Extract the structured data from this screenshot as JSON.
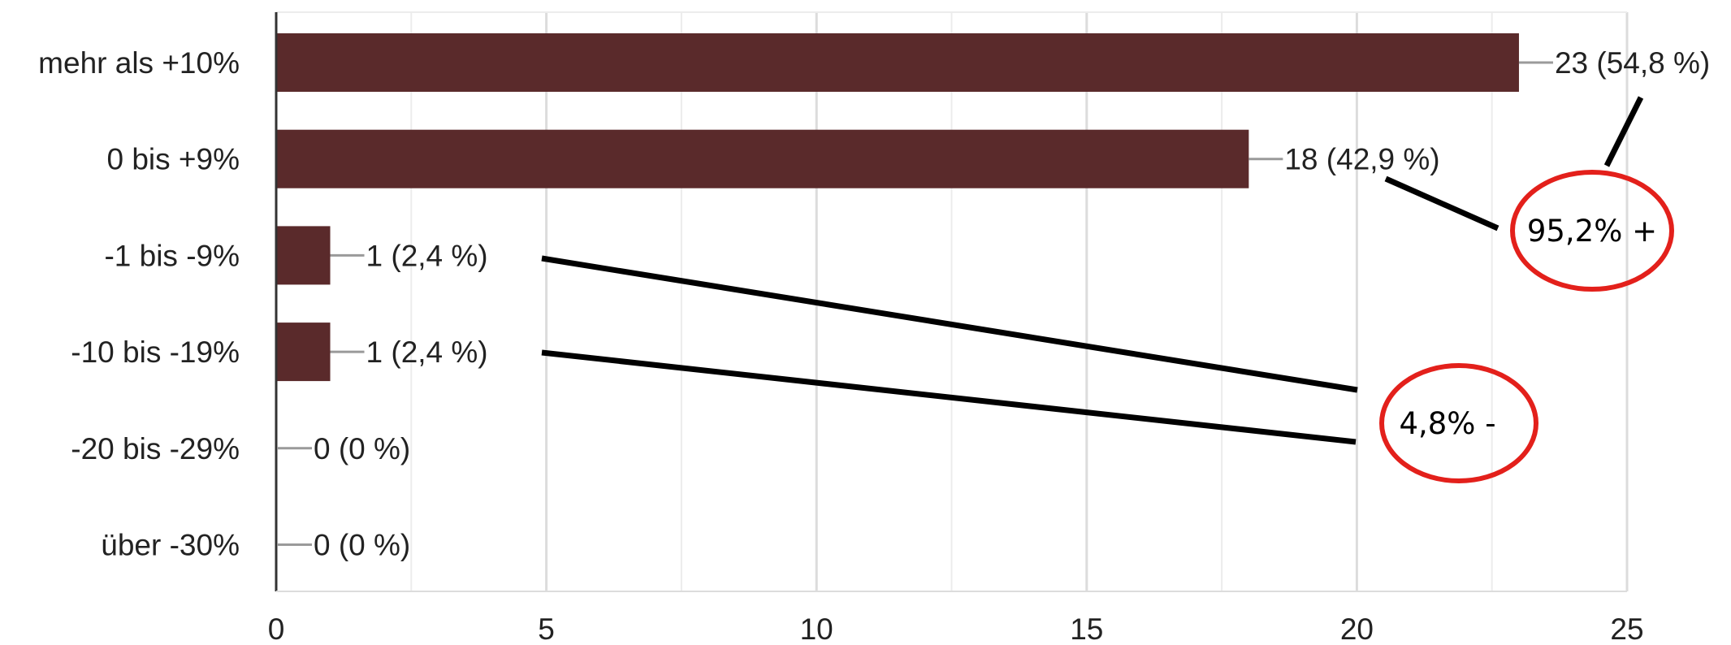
{
  "chart_data": {
    "type": "bar",
    "orientation": "horizontal",
    "categories": [
      "mehr als +10%",
      "0 bis +9%",
      "-1 bis -9%",
      "-10 bis -19%",
      "-20 bis -29%",
      "über -30%"
    ],
    "values": [
      23,
      18,
      1,
      1,
      0,
      0
    ],
    "data_labels": [
      "23 (54,8 %)",
      "18 (42,9 %)",
      "1 (2,4 %)",
      "1 (2,4 %)",
      "0 (0 %)",
      "0 (0 %)"
    ],
    "xlim": [
      0,
      25
    ],
    "xticks": [
      0,
      5,
      10,
      15,
      20,
      25
    ],
    "grid": true,
    "bar_color": "#5a2a2b",
    "annotations": [
      {
        "text": "95,2% +",
        "refers_to": [
          "mehr als +10%",
          "0 bis +9%"
        ],
        "circle_color": "#e3201b"
      },
      {
        "text": "4,8% -",
        "refers_to": [
          "-1 bis -9%",
          "-10 bis -19%"
        ],
        "circle_color": "#e3201b"
      }
    ]
  }
}
